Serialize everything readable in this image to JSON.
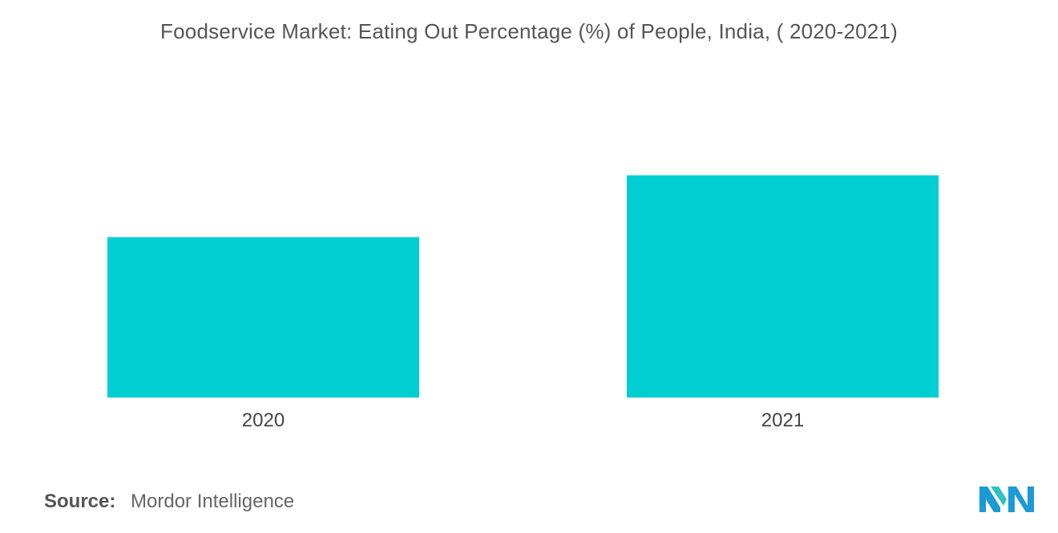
{
  "chart_data": {
    "type": "bar",
    "title": "Foodservice Market: Eating Out Percentage (%) of People, India, ( 2020-2021)",
    "categories": [
      "2020",
      "2021"
    ],
    "values": [
      57,
      79
    ],
    "xlabel": "",
    "ylabel": "",
    "ylim": [
      0,
      100
    ],
    "grid": false,
    "legend": "none",
    "bar_color": "#00CED1"
  },
  "footer": {
    "source_label": "Source:",
    "source_value": "Mordor Intelligence"
  },
  "logo": {
    "icon": "mordor-intelligence-logo-icon",
    "colors": [
      "#1B9AD6",
      "#2FC0C8"
    ]
  }
}
